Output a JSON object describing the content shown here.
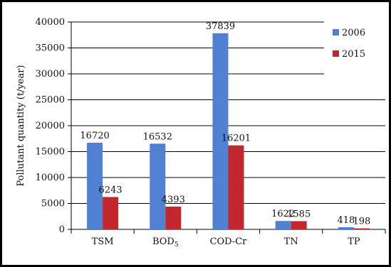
{
  "chart_data": {
    "type": "bar",
    "categories": [
      "TSM",
      "BOD5",
      "COD-Cr",
      "TN",
      "TP"
    ],
    "series": [
      {
        "name": "2006",
        "color": "#4f81d0",
        "values": [
          16720,
          16532,
          37839,
          1622,
          418
        ]
      },
      {
        "name": "2015",
        "color": "#c1272d",
        "values": [
          6243,
          4393,
          16201,
          1585,
          198
        ]
      }
    ],
    "ylabel": "Pollutant quantity (t/year)",
    "ylim": [
      0,
      40000
    ],
    "yticks": [
      "0",
      "5000",
      "10000",
      "15000",
      "20000",
      "25000",
      "30000",
      "35000",
      "40000"
    ],
    "grid": true,
    "legend_position": "top-right"
  }
}
